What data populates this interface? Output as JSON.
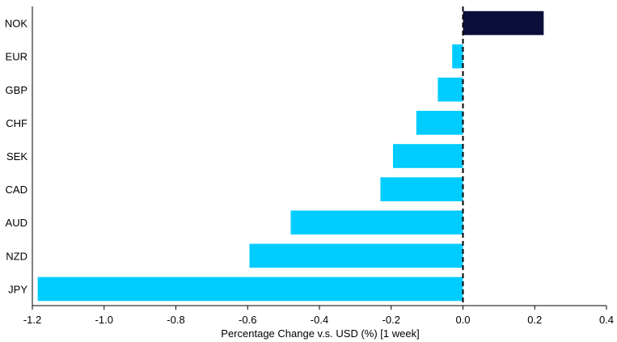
{
  "chart_data": {
    "type": "bar",
    "orientation": "horizontal",
    "categories": [
      "NOK",
      "EUR",
      "GBP",
      "CHF",
      "SEK",
      "CAD",
      "AUD",
      "NZD",
      "JPY"
    ],
    "values": [
      0.225,
      -0.03,
      -0.07,
      -0.13,
      -0.195,
      -0.23,
      -0.48,
      -0.595,
      -1.185
    ],
    "xlabel": "Percentage Change v.s. USD (%) [1 week]",
    "ylabel": "",
    "xlim": [
      -1.2,
      0.4
    ],
    "xticks": [
      "-1.2",
      "-1.0",
      "-0.8",
      "-0.6",
      "-0.4",
      "-0.2",
      "0.0",
      "0.2",
      "0.4"
    ],
    "grid": false,
    "colors": {
      "positive": "#0a0f3a",
      "negative": "#00ccff",
      "zero_line": "#000000"
    }
  }
}
